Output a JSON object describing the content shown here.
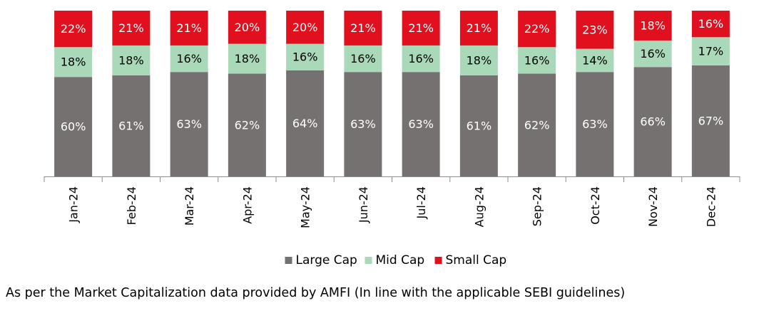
{
  "chart_data": {
    "type": "bar",
    "stacked": true,
    "categories": [
      "Jan-24",
      "Feb-24",
      "Mar-24",
      "Apr-24",
      "May-24",
      "Jun-24",
      "Jul-24",
      "Aug-24",
      "Sep-24",
      "Oct-24",
      "Nov-24",
      "Dec-24"
    ],
    "series": [
      {
        "name": "Large Cap",
        "color": "#767171",
        "label_color": "#ffffff",
        "values": [
          60,
          61,
          63,
          62,
          64,
          63,
          63,
          61,
          62,
          63,
          66,
          67
        ]
      },
      {
        "name": "Mid Cap",
        "color": "#a9d9b9",
        "label_color": "#000000",
        "values": [
          18,
          18,
          16,
          18,
          16,
          16,
          16,
          18,
          16,
          14,
          16,
          17
        ]
      },
      {
        "name": "Small Cap",
        "color": "#e0101e",
        "label_color": "#ffffff",
        "values": [
          22,
          21,
          21,
          20,
          20,
          21,
          21,
          21,
          22,
          23,
          18,
          16
        ]
      }
    ],
    "value_suffix": "%",
    "ylim": [
      0,
      100
    ],
    "grid": false,
    "legend_position": "bottom"
  },
  "footnote": "As per the Market Capitalization data provided by AMFI (In line with the applicable SEBI guidelines)"
}
